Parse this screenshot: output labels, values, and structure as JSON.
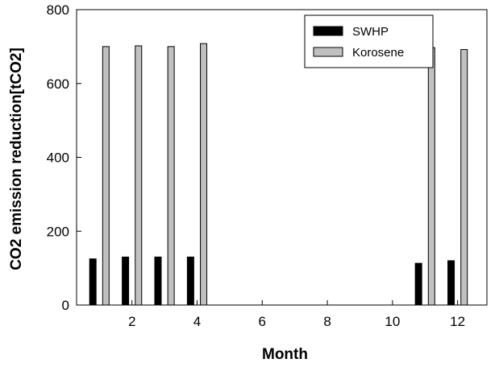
{
  "chart_data": {
    "type": "bar",
    "title": "",
    "xlabel": "Month",
    "ylabel": "CO2 emission reduction[tCO2]",
    "xlim": [
      0.3,
      12.9
    ],
    "ylim": [
      0,
      800
    ],
    "x_ticks": [
      2,
      4,
      6,
      8,
      10,
      12
    ],
    "y_ticks": [
      0,
      200,
      400,
      600,
      800
    ],
    "grid": false,
    "legend_position": "top-right",
    "categories": [
      1,
      2,
      3,
      4,
      5,
      6,
      7,
      8,
      9,
      10,
      11,
      12
    ],
    "series": [
      {
        "name": "SWHP",
        "color": "#000000",
        "values": [
          125,
          130,
          130,
          130,
          0,
          0,
          0,
          0,
          0,
          0,
          113,
          120
        ]
      },
      {
        "name": "Korosene",
        "color": "#c0c0c0",
        "values": [
          700,
          702,
          700,
          708,
          0,
          0,
          0,
          0,
          0,
          0,
          697,
          692
        ]
      }
    ]
  }
}
